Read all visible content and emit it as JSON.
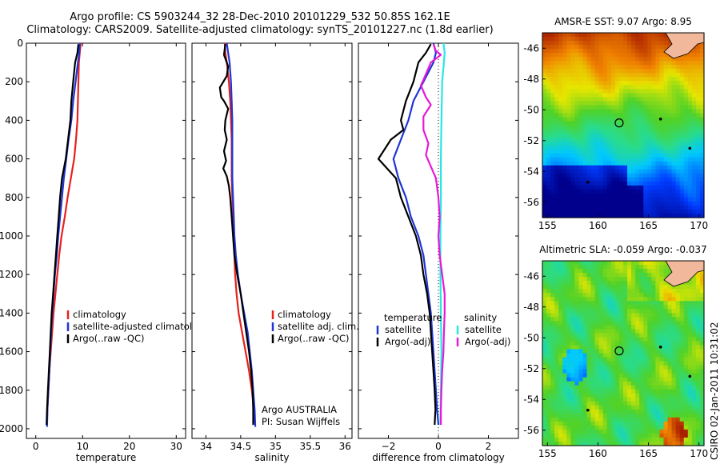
{
  "header": {
    "line1": "Argo profile: CS 5903244_32 28-Dec-2010 20101229_532 50.85S 162.1E",
    "line2": "Climatology: CARS2009. Satellite-adjusted climatology: synTS_20101227.nc (1.8d earlier)"
  },
  "stamp": "CSIRO 02-Jan-2011 10:31:02",
  "colors": {
    "clim": "#e8201c",
    "sat": "#1f35d6",
    "argo": "#000000",
    "sat_sal": "#26e6e6",
    "argo_sal": "#e619d6"
  },
  "chart_data": [
    {
      "type": "line",
      "panel": "temperature",
      "xlabel": "temperature",
      "xlim": [
        -2,
        32
      ],
      "ylim": [
        0,
        2050
      ],
      "y_reversed": true,
      "xticks": [
        0,
        10,
        20,
        30
      ],
      "yticks": [
        0,
        200,
        400,
        600,
        800,
        1000,
        1200,
        1400,
        1600,
        1800,
        2000
      ],
      "legend": [
        "climatology",
        "satellite-adjusted climatology",
        "Argo(..raw -QC)"
      ],
      "series": [
        {
          "name": "climatology",
          "color": "clim",
          "points": [
            [
              9.6,
              0
            ],
            [
              9.4,
              50
            ],
            [
              9.2,
              100
            ],
            [
              9.1,
              200
            ],
            [
              9.0,
              300
            ],
            [
              8.9,
              400
            ],
            [
              8.6,
              500
            ],
            [
              8.2,
              600
            ],
            [
              7.5,
              700
            ],
            [
              6.8,
              800
            ],
            [
              6.2,
              900
            ],
            [
              5.5,
              1000
            ],
            [
              5.0,
              1100
            ],
            [
              4.6,
              1200
            ],
            [
              4.2,
              1300
            ],
            [
              3.8,
              1400
            ],
            [
              3.5,
              1500
            ],
            [
              3.2,
              1600
            ],
            [
              2.9,
              1700
            ],
            [
              2.7,
              1800
            ],
            [
              2.5,
              1900
            ],
            [
              2.4,
              1970
            ]
          ]
        },
        {
          "name": "satellite-adjusted climatology",
          "color": "sat",
          "points": [
            [
              9.4,
              0
            ],
            [
              9.3,
              50
            ],
            [
              9.0,
              100
            ],
            [
              8.5,
              200
            ],
            [
              8.0,
              300
            ],
            [
              7.6,
              400
            ],
            [
              7.0,
              500
            ],
            [
              6.5,
              600
            ],
            [
              6.0,
              700
            ],
            [
              5.6,
              800
            ],
            [
              5.2,
              900
            ],
            [
              4.8,
              1000
            ],
            [
              4.5,
              1100
            ],
            [
              4.1,
              1200
            ],
            [
              3.8,
              1300
            ],
            [
              3.5,
              1400
            ],
            [
              3.3,
              1500
            ],
            [
              3.1,
              1600
            ],
            [
              2.9,
              1700
            ],
            [
              2.7,
              1800
            ],
            [
              2.5,
              1900
            ],
            [
              2.4,
              1990
            ]
          ]
        },
        {
          "name": "Argo(..raw -QC)",
          "color": "argo",
          "points": [
            [
              9.1,
              5
            ],
            [
              8.9,
              50
            ],
            [
              8.4,
              100
            ],
            [
              8.0,
              200
            ],
            [
              7.6,
              300
            ],
            [
              7.4,
              400
            ],
            [
              6.9,
              500
            ],
            [
              6.4,
              600
            ],
            [
              5.6,
              700
            ],
            [
              5.2,
              800
            ],
            [
              4.9,
              900
            ],
            [
              4.6,
              1000
            ],
            [
              4.3,
              1100
            ],
            [
              4.0,
              1200
            ],
            [
              3.7,
              1300
            ],
            [
              3.4,
              1400
            ],
            [
              3.2,
              1500
            ],
            [
              3.0,
              1600
            ],
            [
              2.8,
              1700
            ],
            [
              2.6,
              1800
            ],
            [
              2.4,
              1900
            ],
            [
              2.3,
              1980
            ]
          ]
        }
      ]
    },
    {
      "type": "line",
      "panel": "salinity",
      "xlabel": "salinity",
      "xlim": [
        33.8,
        36.1
      ],
      "ylim": [
        0,
        2050
      ],
      "y_reversed": true,
      "xticks": [
        34,
        34.5,
        35,
        35.5,
        36
      ],
      "xticklabels": [
        "34",
        "34.5",
        "35",
        "35.5",
        "36"
      ],
      "legend": [
        "climatology",
        "satellite adj. clim.",
        "Argo(..raw -QC)"
      ],
      "annotations": [
        "Argo AUSTRALIA",
        "PI: Susan Wijffels"
      ],
      "series": [
        {
          "name": "climatology",
          "color": "clim",
          "points": [
            [
              34.27,
              0
            ],
            [
              34.28,
              50
            ],
            [
              34.3,
              100
            ],
            [
              34.33,
              200
            ],
            [
              34.35,
              300
            ],
            [
              34.36,
              400
            ],
            [
              34.37,
              500
            ],
            [
              34.37,
              600
            ],
            [
              34.37,
              700
            ],
            [
              34.38,
              800
            ],
            [
              34.39,
              900
            ],
            [
              34.4,
              1000
            ],
            [
              34.41,
              1100
            ],
            [
              34.42,
              1200
            ],
            [
              34.44,
              1300
            ],
            [
              34.47,
              1400
            ],
            [
              34.52,
              1500
            ],
            [
              34.57,
              1600
            ],
            [
              34.62,
              1700
            ],
            [
              34.66,
              1800
            ],
            [
              34.69,
              1900
            ],
            [
              34.7,
              1970
            ]
          ]
        },
        {
          "name": "satellite adj. clim.",
          "color": "sat",
          "points": [
            [
              34.3,
              0
            ],
            [
              34.32,
              50
            ],
            [
              34.34,
              100
            ],
            [
              34.36,
              200
            ],
            [
              34.37,
              300
            ],
            [
              34.38,
              400
            ],
            [
              34.38,
              500
            ],
            [
              34.38,
              600
            ],
            [
              34.38,
              700
            ],
            [
              34.39,
              800
            ],
            [
              34.4,
              900
            ],
            [
              34.41,
              1000
            ],
            [
              34.43,
              1100
            ],
            [
              34.46,
              1200
            ],
            [
              34.5,
              1300
            ],
            [
              34.55,
              1400
            ],
            [
              34.6,
              1500
            ],
            [
              34.63,
              1600
            ],
            [
              34.66,
              1700
            ],
            [
              34.68,
              1800
            ],
            [
              34.7,
              1900
            ],
            [
              34.71,
              1990
            ]
          ]
        },
        {
          "name": "Argo(..raw -QC)",
          "color": "argo",
          "points": [
            [
              34.28,
              5
            ],
            [
              34.26,
              60
            ],
            [
              34.32,
              120
            ],
            [
              34.3,
              170
            ],
            [
              34.2,
              230
            ],
            [
              34.22,
              280
            ],
            [
              34.26,
              300
            ],
            [
              34.32,
              340
            ],
            [
              34.28,
              400
            ],
            [
              34.27,
              450
            ],
            [
              34.3,
              500
            ],
            [
              34.26,
              560
            ],
            [
              34.29,
              610
            ],
            [
              34.25,
              650
            ],
            [
              34.3,
              690
            ],
            [
              34.33,
              740
            ],
            [
              34.35,
              800
            ],
            [
              34.37,
              900
            ],
            [
              34.39,
              1000
            ],
            [
              34.41,
              1100
            ],
            [
              34.45,
              1200
            ],
            [
              34.5,
              1300
            ],
            [
              34.54,
              1400
            ],
            [
              34.58,
              1500
            ],
            [
              34.62,
              1600
            ],
            [
              34.65,
              1700
            ],
            [
              34.67,
              1800
            ],
            [
              34.68,
              1900
            ],
            [
              34.68,
              1980
            ]
          ]
        }
      ]
    },
    {
      "type": "line",
      "panel": "difference",
      "xlabel": "difference from climatology",
      "xlim": [
        -3.2,
        3.2
      ],
      "ylim": [
        0,
        2050
      ],
      "y_reversed": true,
      "xticks": [
        -2,
        0,
        2
      ],
      "xticklabels": [
        "−2",
        "0",
        "2"
      ],
      "legend_groups": [
        {
          "title": "temperature",
          "items": [
            "satellite",
            "Argo(-adj)"
          ]
        },
        {
          "title": "salinity",
          "items": [
            "satellite",
            "Argo(-adj)"
          ]
        }
      ],
      "series": [
        {
          "name": "temperature satellite",
          "color": "sat",
          "points": [
            [
              -0.2,
              0
            ],
            [
              -0.1,
              50
            ],
            [
              -0.2,
              100
            ],
            [
              -0.6,
              200
            ],
            [
              -1.0,
              300
            ],
            [
              -1.2,
              400
            ],
            [
              -1.5,
              500
            ],
            [
              -1.8,
              600
            ],
            [
              -1.6,
              700
            ],
            [
              -1.3,
              800
            ],
            [
              -1.1,
              900
            ],
            [
              -0.8,
              1000
            ],
            [
              -0.6,
              1100
            ],
            [
              -0.5,
              1200
            ],
            [
              -0.4,
              1300
            ],
            [
              -0.3,
              1400
            ],
            [
              -0.25,
              1500
            ],
            [
              -0.2,
              1600
            ],
            [
              -0.15,
              1700
            ],
            [
              -0.1,
              1800
            ],
            [
              -0.05,
              1900
            ],
            [
              0,
              1980
            ]
          ]
        },
        {
          "name": "temperature Argo(-adj)",
          "color": "argo",
          "points": [
            [
              -0.3,
              5
            ],
            [
              -0.5,
              50
            ],
            [
              -0.8,
              100
            ],
            [
              -1.0,
              200
            ],
            [
              -1.3,
              300
            ],
            [
              -1.5,
              400
            ],
            [
              -1.4,
              450
            ],
            [
              -1.9,
              500
            ],
            [
              -2.4,
              600
            ],
            [
              -1.7,
              700
            ],
            [
              -1.5,
              800
            ],
            [
              -1.2,
              900
            ],
            [
              -0.9,
              1000
            ],
            [
              -0.7,
              1100
            ],
            [
              -0.6,
              1200
            ],
            [
              -0.45,
              1300
            ],
            [
              -0.35,
              1400
            ],
            [
              -0.3,
              1500
            ],
            [
              -0.25,
              1600
            ],
            [
              -0.2,
              1700
            ],
            [
              -0.15,
              1800
            ],
            [
              -0.12,
              1900
            ],
            [
              -0.15,
              1980
            ]
          ]
        },
        {
          "name": "salinity satellite",
          "color": "sat_sal",
          "points": [
            [
              0.2,
              0
            ],
            [
              0.25,
              50
            ],
            [
              0.22,
              100
            ],
            [
              0.15,
              200
            ],
            [
              0.12,
              400
            ],
            [
              0.1,
              600
            ],
            [
              0.1,
              800
            ],
            [
              0.08,
              1000
            ],
            [
              0.08,
              1200
            ],
            [
              0.1,
              1400
            ],
            [
              0.12,
              1600
            ],
            [
              0.1,
              1800
            ],
            [
              0.08,
              1980
            ]
          ]
        },
        {
          "name": "salinity Argo(-adj)",
          "color": "argo_sal",
          "points": [
            [
              -0.2,
              5
            ],
            [
              -0.1,
              40
            ],
            [
              0.1,
              60
            ],
            [
              -0.3,
              100
            ],
            [
              -0.5,
              160
            ],
            [
              -0.7,
              220
            ],
            [
              -0.5,
              280
            ],
            [
              -0.3,
              320
            ],
            [
              -0.6,
              380
            ],
            [
              -0.6,
              450
            ],
            [
              -0.4,
              520
            ],
            [
              -0.5,
              580
            ],
            [
              -0.3,
              640
            ],
            [
              -0.1,
              700
            ],
            [
              0,
              800
            ],
            [
              0.05,
              900
            ],
            [
              0,
              1000
            ],
            [
              0.05,
              1100
            ],
            [
              0.15,
              1200
            ],
            [
              0.25,
              1300
            ],
            [
              0.25,
              1400
            ],
            [
              0.22,
              1500
            ],
            [
              0.2,
              1600
            ],
            [
              0.15,
              1700
            ],
            [
              0.12,
              1800
            ],
            [
              0.1,
              1900
            ],
            [
              0.1,
              1980
            ]
          ]
        }
      ]
    },
    {
      "type": "heatmap",
      "panel": "sst_map",
      "title": "AMSR-E SST: 9.07 Argo: 8.95",
      "xlim": [
        154.5,
        170.5
      ],
      "ylim": [
        -57,
        -45
      ],
      "xticks": [
        155,
        160,
        165,
        170
      ],
      "yticks": [
        -46,
        -48,
        -50,
        -52,
        -54,
        -56
      ],
      "argo_position": [
        162.1,
        -50.85
      ],
      "islands": [
        [
          166.2,
          -50.6
        ],
        [
          169.1,
          -52.5
        ],
        [
          159.0,
          -54.7
        ]
      ]
    },
    {
      "type": "heatmap",
      "panel": "sla_map",
      "title": "Altimetric SLA: -0.059 Argo: -0.037",
      "xlim": [
        154.5,
        170.5
      ],
      "ylim": [
        -57,
        -45
      ],
      "xticks": [
        155,
        160,
        165,
        170
      ],
      "yticks": [
        -46,
        -48,
        -50,
        -52,
        -54,
        -56
      ],
      "argo_position": [
        162.1,
        -50.85
      ],
      "islands": [
        [
          166.2,
          -50.6
        ],
        [
          169.1,
          -52.5
        ],
        [
          159.0,
          -54.7
        ]
      ]
    }
  ]
}
